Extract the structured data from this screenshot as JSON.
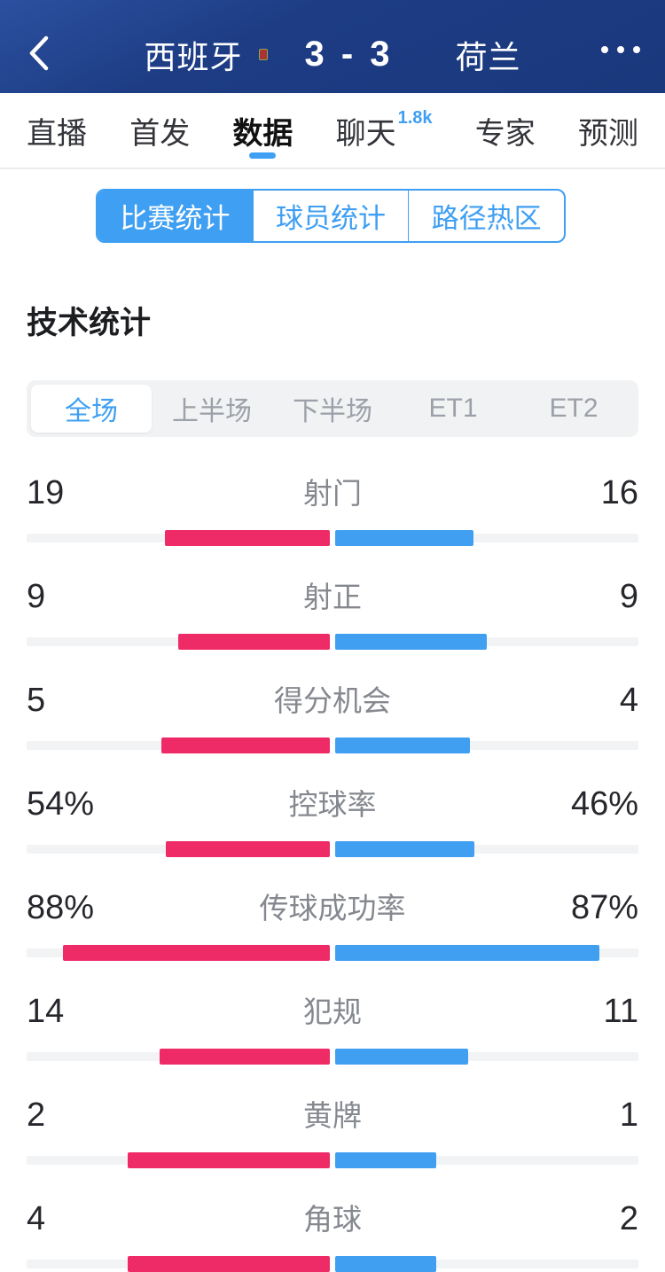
{
  "header": {
    "back_icon": "chevron-left",
    "home_team": "西班牙",
    "away_team": "荷兰",
    "score": "3 - 3",
    "home_flag": "spain-flag",
    "away_flag": "netherlands-flag",
    "more_icon": "ellipsis"
  },
  "tabs": [
    {
      "key": "live",
      "label": "直播",
      "active": false,
      "badge": ""
    },
    {
      "key": "lineup",
      "label": "首发",
      "active": false,
      "badge": ""
    },
    {
      "key": "data",
      "label": "数据",
      "active": true,
      "badge": ""
    },
    {
      "key": "chat",
      "label": "聊天",
      "active": false,
      "badge": "1.8k"
    },
    {
      "key": "expert",
      "label": "专家",
      "active": false,
      "badge": ""
    },
    {
      "key": "predict",
      "label": "预测",
      "active": false,
      "badge": ""
    }
  ],
  "sub_tabs": [
    {
      "key": "match-stats",
      "label": "比赛统计",
      "active": true
    },
    {
      "key": "player-stats",
      "label": "球员统计",
      "active": false
    },
    {
      "key": "path-heatmap",
      "label": "路径热区",
      "active": false
    }
  ],
  "section_title": "技术统计",
  "period_tabs": [
    {
      "key": "full",
      "label": "全场",
      "active": true
    },
    {
      "key": "h1",
      "label": "上半场",
      "active": false
    },
    {
      "key": "h2",
      "label": "下半场",
      "active": false
    },
    {
      "key": "et1",
      "label": "ET1",
      "active": false
    },
    {
      "key": "et2",
      "label": "ET2",
      "active": false
    }
  ],
  "colors": {
    "accent_blue": "#3f9ff2",
    "home_bar": "#ee2a67",
    "away_bar": "#419ff2",
    "bar_track": "#f2f3f5",
    "header_blue": "#1d3c84"
  },
  "chart_data": {
    "type": "bar",
    "title": "技术统计 全场 西班牙 vs 荷兰",
    "categories": [
      "射门",
      "射正",
      "得分机会",
      "控球率",
      "传球成功率",
      "犯规",
      "黄牌",
      "角球"
    ],
    "series": [
      {
        "name": "西班牙",
        "values": [
          19,
          9,
          5,
          54,
          88,
          14,
          2,
          4
        ]
      },
      {
        "name": "荷兰",
        "values": [
          16,
          9,
          4,
          46,
          87,
          11,
          1,
          2
        ]
      }
    ],
    "percent_rows": [
      false,
      false,
      false,
      true,
      true,
      false,
      false,
      false
    ],
    "legend_position": "none",
    "layout": "paired horizontal bars from center; count rows scaled by value/(home+away), percent rows by value/100"
  },
  "stats": [
    {
      "label": "射门",
      "home": 19,
      "away": 16,
      "percent": false
    },
    {
      "label": "射正",
      "home": 9,
      "away": 9,
      "percent": false
    },
    {
      "label": "得分机会",
      "home": 5,
      "away": 4,
      "percent": false
    },
    {
      "label": "控球率",
      "home": 54,
      "away": 46,
      "percent": true
    },
    {
      "label": "传球成功率",
      "home": 88,
      "away": 87,
      "percent": true
    },
    {
      "label": "犯规",
      "home": 14,
      "away": 11,
      "percent": false
    },
    {
      "label": "黄牌",
      "home": 2,
      "away": 1,
      "percent": false
    },
    {
      "label": "角球",
      "home": 4,
      "away": 2,
      "percent": false
    }
  ]
}
